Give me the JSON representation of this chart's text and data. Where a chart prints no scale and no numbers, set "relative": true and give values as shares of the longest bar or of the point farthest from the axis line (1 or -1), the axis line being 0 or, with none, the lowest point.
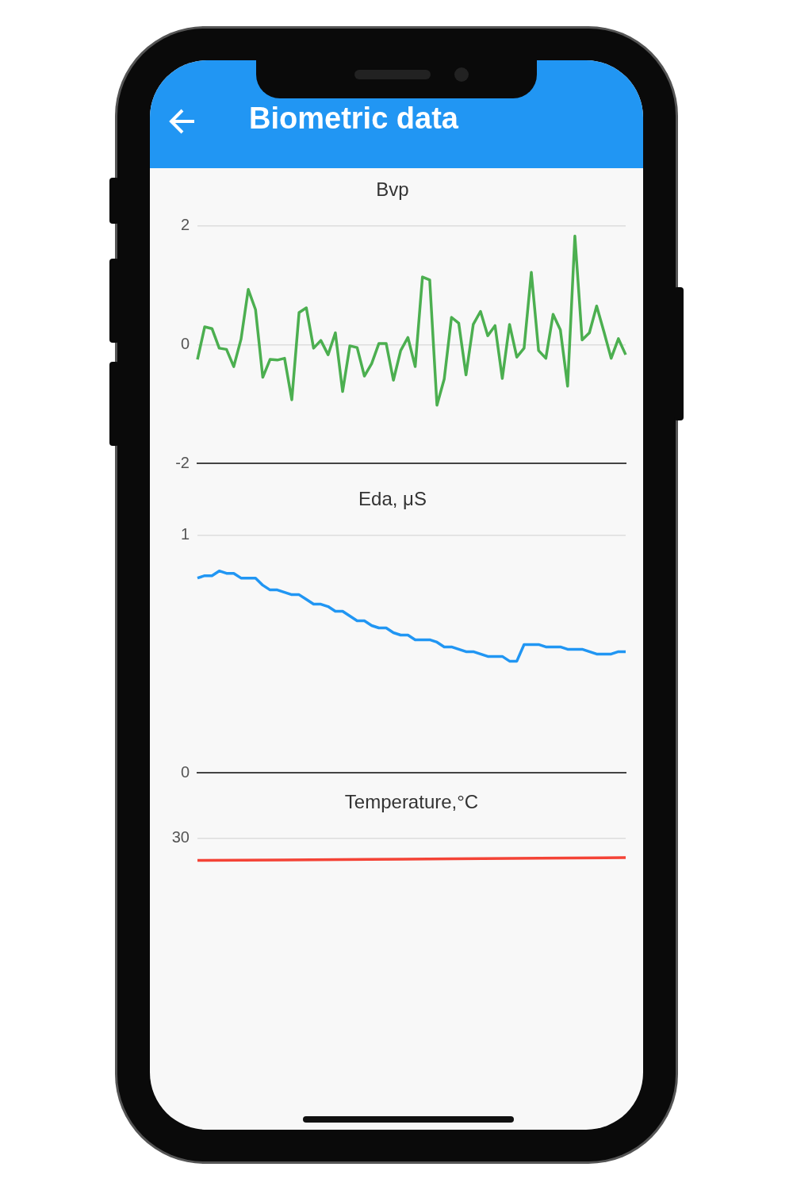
{
  "chart_data": [
    {
      "type": "other",
      "title": "Biometric data"
    },
    {
      "type": "line",
      "title": "Bvp",
      "categories": [
        null,
        null,
        null,
        null,
        null,
        null,
        null,
        null,
        null,
        null,
        null,
        null,
        null,
        null,
        null,
        null,
        null,
        null,
        null,
        null,
        null,
        null,
        null,
        null,
        null,
        null,
        null,
        null,
        null,
        null,
        null,
        null,
        null,
        null,
        null,
        null,
        null,
        null,
        null,
        null,
        null,
        null,
        null,
        null,
        null,
        null,
        null,
        null,
        null,
        null,
        null,
        null,
        null,
        null,
        null,
        null,
        null,
        null,
        null,
        null
      ],
      "series": [
        {
          "color": "#4caf50",
          "values": [
            -0.25,
            0.3,
            0.27,
            -0.06,
            -0.08,
            -0.37,
            0.09,
            0.93,
            0.59,
            -0.55,
            -0.25,
            -0.26,
            -0.23,
            -0.93,
            0.54,
            0.62,
            -0.06,
            0.07,
            -0.17,
            0.2,
            -0.79,
            -0.02,
            -0.05,
            -0.53,
            -0.32,
            0.02,
            0.02,
            -0.6,
            -0.1,
            0.12,
            -0.37,
            1.14,
            1.09,
            -1.02,
            -0.58,
            0.46,
            0.36,
            -0.51,
            0.34,
            0.56,
            0.15,
            0.32,
            -0.57,
            0.34,
            -0.21,
            -0.06,
            1.22,
            -0.1,
            -0.23,
            0.51,
            0.25,
            -0.7,
            1.83,
            0.08,
            0.2,
            0.65,
            0.22,
            -0.23,
            0.1,
            -0.17
          ]
        }
      ],
      "ylim": [
        -2,
        2
      ],
      "yticks": [
        -2,
        0,
        2
      ],
      "grid": "y",
      "tick_labels": "y",
      "marker": "none"
    },
    {
      "type": "line",
      "title": "Eda, μS",
      "categories": [
        null,
        null,
        null,
        null,
        null,
        null,
        null,
        null,
        null,
        null,
        null,
        null,
        null,
        null,
        null,
        null,
        null,
        null,
        null,
        null,
        null,
        null,
        null,
        null,
        null,
        null,
        null,
        null,
        null,
        null,
        null,
        null,
        null,
        null,
        null,
        null,
        null,
        null,
        null,
        null,
        null,
        null,
        null,
        null,
        null,
        null,
        null,
        null,
        null,
        null,
        null,
        null,
        null,
        null,
        null,
        null,
        null,
        null,
        null,
        null
      ],
      "series": [
        {
          "color": "#2196f3",
          "values": [
            0.82,
            0.83,
            0.83,
            0.85,
            0.84,
            0.84,
            0.82,
            0.82,
            0.82,
            0.79,
            0.77,
            0.77,
            0.76,
            0.75,
            0.75,
            0.73,
            0.71,
            0.71,
            0.7,
            0.68,
            0.68,
            0.66,
            0.64,
            0.64,
            0.62,
            0.61,
            0.61,
            0.59,
            0.58,
            0.58,
            0.56,
            0.56,
            0.56,
            0.55,
            0.53,
            0.53,
            0.52,
            0.51,
            0.51,
            0.5,
            0.49,
            0.49,
            0.49,
            0.47,
            0.47,
            0.54,
            0.54,
            0.54,
            0.53,
            0.53,
            0.53,
            0.52,
            0.52,
            0.52,
            0.51,
            0.5,
            0.5,
            0.5,
            0.51,
            0.51
          ]
        }
      ],
      "ylim": [
        0,
        1
      ],
      "yticks": [
        0,
        1
      ],
      "grid": "y",
      "tick_labels": "y",
      "marker": "none"
    },
    {
      "type": "line",
      "title": "Temperature,°C",
      "categories": [
        null,
        null,
        null,
        null,
        null,
        null
      ],
      "relative": true,
      "series": [
        {
          "color": "#f44336",
          "values": [
            0,
            0.2,
            0.4,
            0.6,
            0.8,
            1
          ]
        }
      ],
      "annotations": [
        "30"
      ],
      "tick_labels": "y",
      "marker": "none"
    }
  ]
}
